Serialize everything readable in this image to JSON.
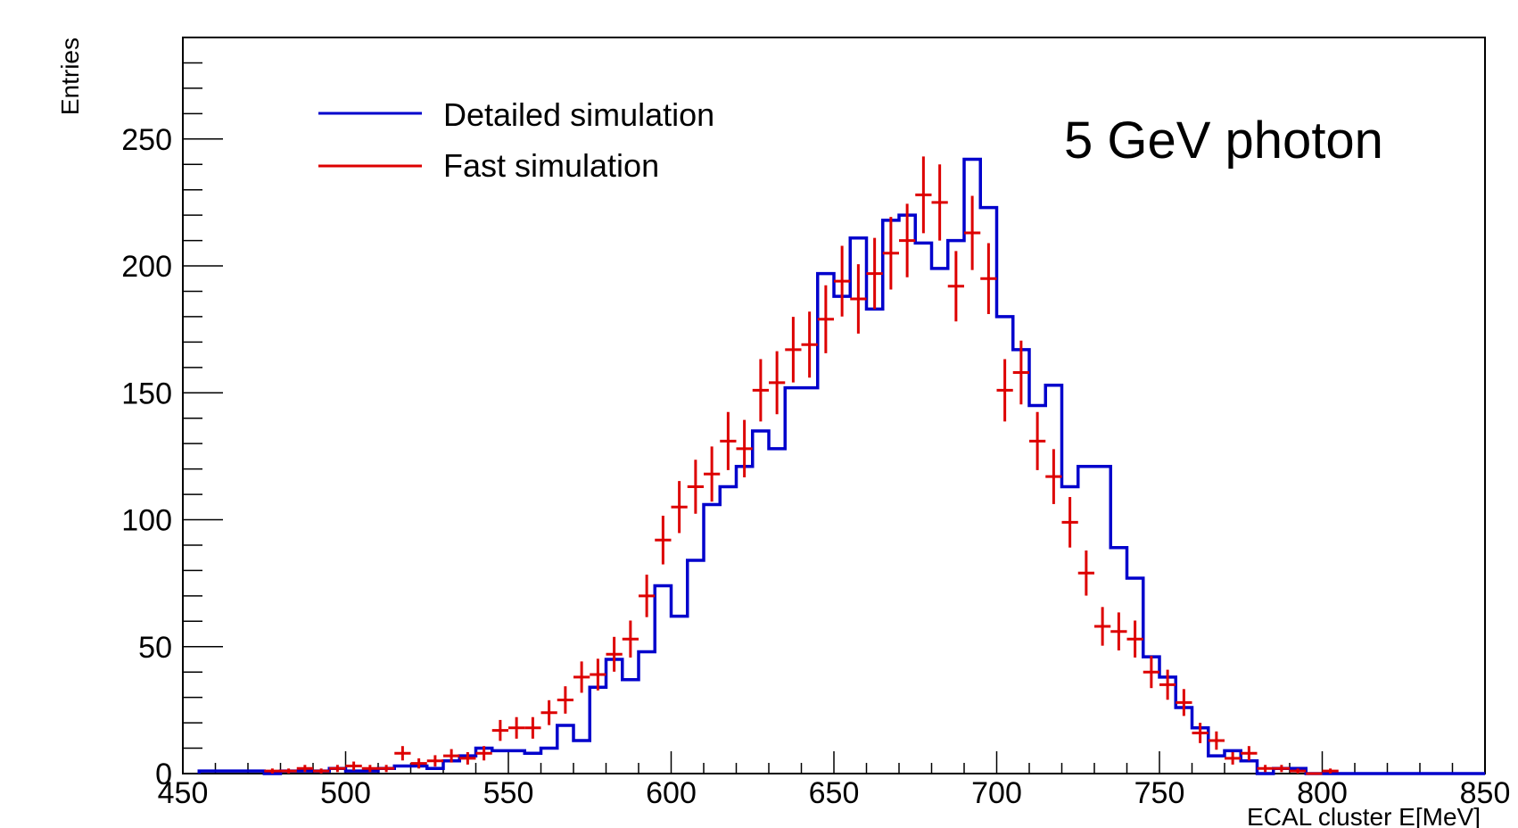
{
  "chart_data": {
    "type": "histogram",
    "title": "",
    "annotation": "5 GeV photon",
    "xlabel": "ECAL cluster E[MeV]",
    "ylabel": "Entries",
    "xlim": [
      450,
      850
    ],
    "ylim": [
      0,
      290
    ],
    "x_ticks": [
      450,
      500,
      550,
      600,
      650,
      700,
      750,
      800,
      850
    ],
    "y_ticks": [
      0,
      50,
      100,
      150,
      200,
      250
    ],
    "grid": false,
    "legend_position": "top-left",
    "bin_width": 5,
    "series": [
      {
        "name": "Detailed simulation",
        "style": "step",
        "color": "#0000cc",
        "bin_edges": [
          455,
          460,
          465,
          470,
          475,
          480,
          485,
          490,
          495,
          500,
          505,
          510,
          515,
          520,
          525,
          530,
          535,
          540,
          545,
          550,
          555,
          560,
          565,
          570,
          575,
          580,
          585,
          590,
          595,
          600,
          605,
          610,
          615,
          620,
          625,
          630,
          635,
          640,
          645,
          650,
          655,
          660,
          665,
          670,
          675,
          680,
          685,
          690,
          695,
          700,
          705,
          710,
          715,
          720,
          725,
          730,
          735,
          740,
          745,
          750,
          755,
          760,
          765,
          770,
          775,
          780,
          785,
          790,
          795,
          800,
          805,
          810,
          815,
          820,
          825,
          830,
          835,
          840,
          845,
          850
        ],
        "values": [
          1,
          1,
          1,
          1,
          0,
          1,
          1,
          1,
          2,
          1,
          1,
          2,
          3,
          3,
          2,
          5,
          7,
          10,
          9,
          9,
          8,
          10,
          19,
          13,
          34,
          45,
          37,
          48,
          74,
          62,
          84,
          106,
          113,
          121,
          135,
          128,
          152,
          152,
          197,
          188,
          211,
          183,
          218,
          220,
          209,
          199,
          210,
          242,
          223,
          180,
          167,
          145,
          153,
          113,
          121,
          121,
          89,
          77,
          46,
          38,
          26,
          18,
          7,
          9,
          5,
          0,
          2,
          2,
          0,
          0,
          0,
          0,
          0,
          0,
          0,
          0,
          0,
          0,
          0
        ]
      },
      {
        "name": "Fast simulation",
        "style": "errorbars",
        "color": "#dd0000",
        "bin_centers": [
          477.5,
          482.5,
          487.5,
          492.5,
          497.5,
          502.5,
          507.5,
          512.5,
          517.5,
          522.5,
          527.5,
          532.5,
          537.5,
          542.5,
          547.5,
          552.5,
          557.5,
          562.5,
          567.5,
          572.5,
          577.5,
          582.5,
          587.5,
          592.5,
          597.5,
          602.5,
          607.5,
          612.5,
          617.5,
          622.5,
          627.5,
          632.5,
          637.5,
          642.5,
          647.5,
          652.5,
          657.5,
          662.5,
          667.5,
          672.5,
          677.5,
          682.5,
          687.5,
          692.5,
          697.5,
          702.5,
          707.5,
          712.5,
          717.5,
          722.5,
          727.5,
          732.5,
          737.5,
          742.5,
          747.5,
          752.5,
          757.5,
          762.5,
          767.5,
          772.5,
          777.5,
          782.5,
          787.5,
          792.5,
          797.5,
          802.5
        ],
        "values": [
          1,
          1,
          2,
          1,
          2,
          3,
          2,
          2,
          8,
          4,
          5,
          7,
          6,
          8,
          17,
          18,
          18,
          24,
          29,
          38,
          39,
          47,
          53,
          70,
          92,
          105,
          113,
          118,
          131,
          128,
          151,
          154,
          167,
          169,
          179,
          194,
          187,
          197,
          205,
          210,
          228,
          225,
          192,
          213,
          195,
          151,
          158,
          131,
          117,
          99,
          79,
          58,
          56,
          53,
          40,
          35,
          28,
          16,
          13,
          6,
          8,
          2,
          2,
          1,
          0,
          1
        ]
      }
    ]
  }
}
